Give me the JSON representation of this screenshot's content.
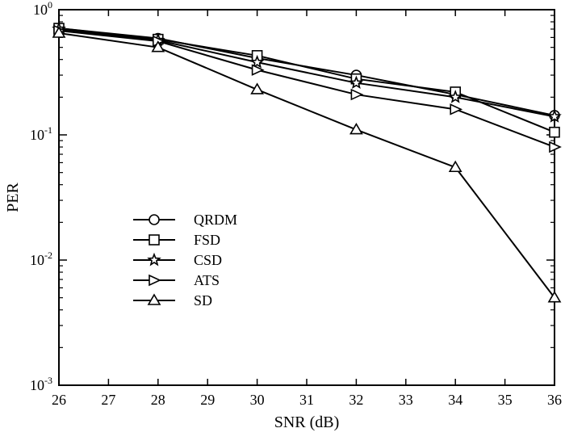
{
  "chart_data": {
    "type": "line",
    "title": "",
    "xlabel": "SNR (dB)",
    "ylabel": "PER",
    "xlim": [
      26,
      36
    ],
    "ylim": [
      0.001,
      1
    ],
    "yscale": "log",
    "grid": false,
    "legend_position": "center-left",
    "x_ticks": [
      "26",
      "27",
      "28",
      "29",
      "30",
      "31",
      "32",
      "33",
      "34",
      "35",
      "36"
    ],
    "y_ticks": [
      {
        "value": 1,
        "base": "10",
        "exp": "0"
      },
      {
        "value": 0.1,
        "base": "10",
        "exp": "-1"
      },
      {
        "value": 0.01,
        "base": "10",
        "exp": "-2"
      },
      {
        "value": 0.001,
        "base": "10",
        "exp": "-3"
      }
    ],
    "x": [
      26,
      28,
      30,
      32,
      34,
      36
    ],
    "series": [
      {
        "name": "QRDM",
        "marker": "circle",
        "values": [
          0.71,
          0.59,
          0.41,
          0.3,
          0.21,
          0.143
        ]
      },
      {
        "name": "FSD",
        "marker": "square",
        "values": [
          0.71,
          0.58,
          0.43,
          0.28,
          0.22,
          0.105
        ]
      },
      {
        "name": "CSD",
        "marker": "star",
        "values": [
          0.7,
          0.57,
          0.38,
          0.26,
          0.2,
          0.14
        ]
      },
      {
        "name": "ATS",
        "marker": "triangle-right",
        "values": [
          0.68,
          0.56,
          0.33,
          0.21,
          0.16,
          0.08
        ]
      },
      {
        "name": "SD",
        "marker": "triangle-up",
        "values": [
          0.65,
          0.5,
          0.23,
          0.11,
          0.055,
          0.005
        ]
      }
    ]
  }
}
